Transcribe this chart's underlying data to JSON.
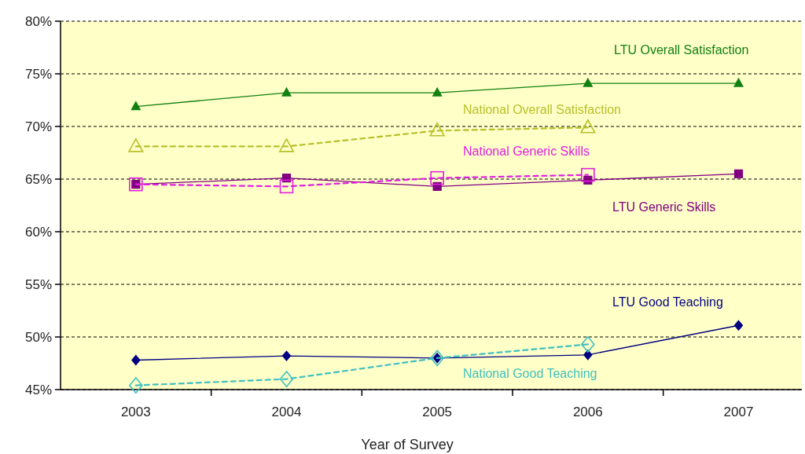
{
  "chart_data": {
    "type": "line",
    "xlabel": "Year of Survey",
    "categories": [
      "2003",
      "2004",
      "2005",
      "2006",
      "2007"
    ],
    "ylim": [
      45,
      80
    ],
    "yticks": [
      {
        "value": 45,
        "label": "45%"
      },
      {
        "value": 50,
        "label": "50%"
      },
      {
        "value": 55,
        "label": "55%"
      },
      {
        "value": 60,
        "label": "60%"
      },
      {
        "value": 65,
        "label": "65%"
      },
      {
        "value": 70,
        "label": "70%"
      },
      {
        "value": 75,
        "label": "75%"
      },
      {
        "value": 80,
        "label": "80%"
      }
    ],
    "grid": "y",
    "legend": false,
    "series": [
      {
        "name": "LTU Overall Satisfaction",
        "color": "#118011",
        "marker": "triangle",
        "line_style": "solid",
        "values": [
          71.9,
          73.2,
          73.2,
          74.1,
          74.1
        ]
      },
      {
        "name": "National Overall Satisfaction",
        "color": "#b8c02a",
        "marker": "triangle",
        "line_style": "dashed",
        "values": [
          68.1,
          68.1,
          69.6,
          69.9,
          null
        ]
      },
      {
        "name": "National Generic Skills",
        "color": "#e020e0",
        "marker": "square",
        "line_style": "dashed",
        "values": [
          64.5,
          64.3,
          65.1,
          65.4,
          null
        ]
      },
      {
        "name": "LTU Generic Skills",
        "color": "#800080",
        "marker": "square",
        "line_style": "solid",
        "values": [
          64.5,
          65.1,
          64.3,
          64.9,
          65.5
        ]
      },
      {
        "name": "LTU Good Teaching",
        "color": "#000080",
        "marker": "diamond",
        "line_style": "solid",
        "values": [
          47.8,
          48.2,
          48.0,
          48.3,
          51.1
        ]
      },
      {
        "name": "National Good Teaching",
        "color": "#40c0c0",
        "marker": "diamond",
        "line_style": "dashed",
        "values": [
          45.4,
          46.0,
          48.0,
          49.3,
          null
        ]
      }
    ]
  }
}
